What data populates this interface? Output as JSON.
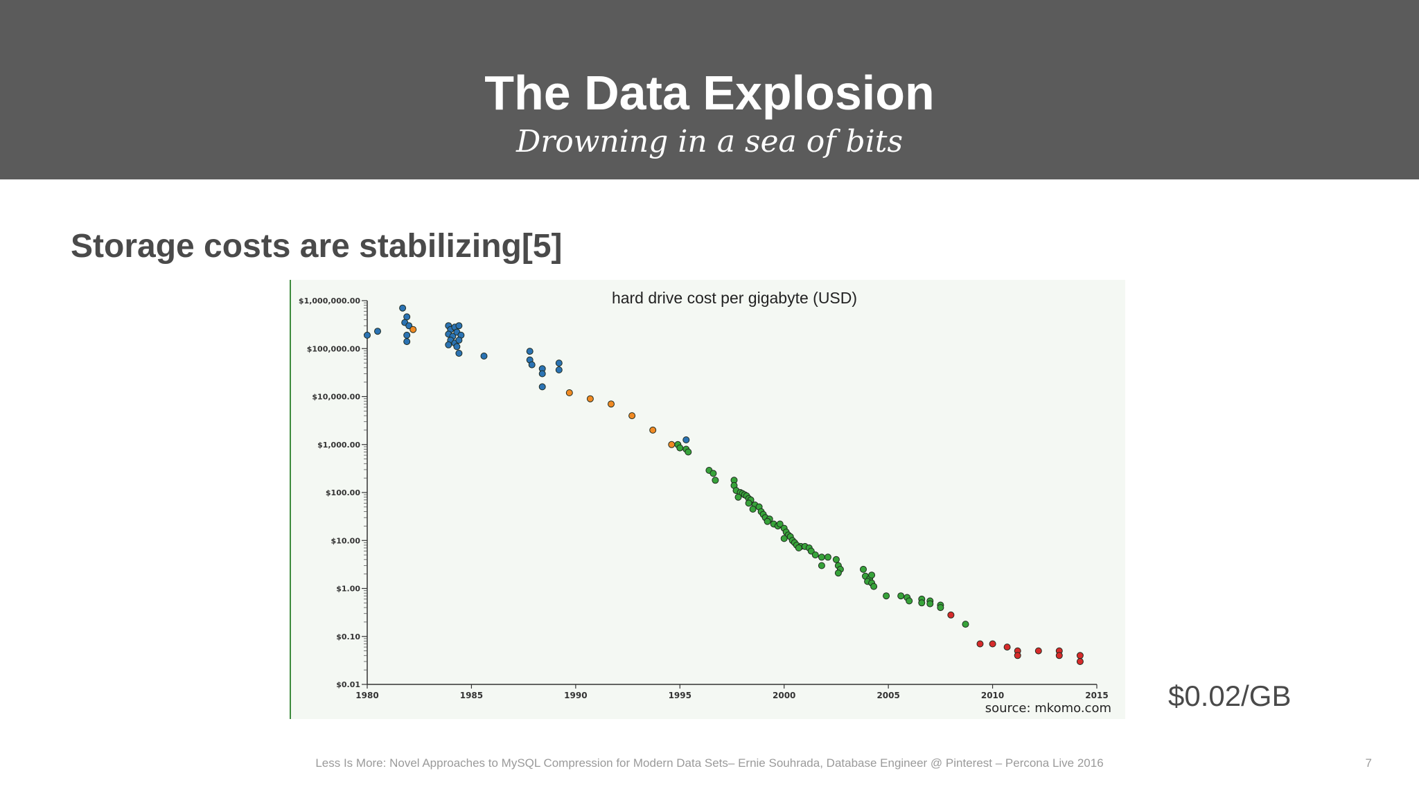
{
  "slide": {
    "title": "The Data Explosion",
    "subtitle": "Drowning in a sea of bits",
    "heading": "Storage costs are stabilizing[5]",
    "price_label": "$0.02/GB",
    "footer": "Less Is More: Novel Approaches to MySQL Compression for Modern Data Sets– Ernie Souhrada, Database Engineer @ Pinterest – Percona Live 2016",
    "page_number": "7"
  },
  "colors": {
    "header_bg": "#5b5b5b",
    "chart_bg": "#f4f8f3",
    "blue": "#2b73b3",
    "orange": "#f08a24",
    "green": "#37a33a",
    "red": "#d62b2b"
  },
  "chart_data": {
    "type": "scatter",
    "title": "hard drive cost per gigabyte (USD)",
    "source": "source: mkomo.com",
    "xlabel": "",
    "ylabel": "",
    "xlim": [
      1980,
      2015
    ],
    "ylim": [
      0.01,
      1000000
    ],
    "yscale": "log",
    "grid": false,
    "x_ticks": [
      "1980",
      "1985",
      "1990",
      "1995",
      "2000",
      "2005",
      "2010",
      "2015"
    ],
    "y_ticks": [
      "$1,000,000.00",
      "$100,000.00",
      "$10,000.00",
      "$1,000.00",
      "$100.00",
      "$10.00",
      "$1.00",
      "$0.10",
      "$0.01"
    ],
    "series": [
      {
        "color": "#2b73b3",
        "points": [
          [
            1980.0,
            190000
          ],
          [
            1980.5,
            230000
          ],
          [
            1981.7,
            700000
          ],
          [
            1981.9,
            460000
          ],
          [
            1981.8,
            350000
          ],
          [
            1982.0,
            300000
          ],
          [
            1981.9,
            190000
          ],
          [
            1981.9,
            140000
          ],
          [
            1983.9,
            300000
          ],
          [
            1984.0,
            250000
          ],
          [
            1984.2,
            280000
          ],
          [
            1984.4,
            300000
          ],
          [
            1983.9,
            200000
          ],
          [
            1984.1,
            180000
          ],
          [
            1984.3,
            220000
          ],
          [
            1984.5,
            190000
          ],
          [
            1984.0,
            150000
          ],
          [
            1984.2,
            130000
          ],
          [
            1983.9,
            120000
          ],
          [
            1984.4,
            150000
          ],
          [
            1984.3,
            110000
          ],
          [
            1984.4,
            80000
          ],
          [
            1985.6,
            70000
          ],
          [
            1987.8,
            88000
          ],
          [
            1987.8,
            58000
          ],
          [
            1987.9,
            46000
          ],
          [
            1988.4,
            38000
          ],
          [
            1988.4,
            30000
          ],
          [
            1988.4,
            16000
          ],
          [
            1989.2,
            50000
          ],
          [
            1989.2,
            36000
          ],
          [
            1995.3,
            1250
          ]
        ]
      },
      {
        "color": "#f08a24",
        "points": [
          [
            1982.2,
            250000
          ],
          [
            1989.7,
            12000
          ],
          [
            1990.7,
            9000
          ],
          [
            1991.7,
            7000
          ],
          [
            1992.7,
            4000
          ],
          [
            1993.7,
            2000
          ],
          [
            1994.6,
            1000
          ]
        ]
      },
      {
        "color": "#37a33a",
        "points": [
          [
            1994.9,
            1000
          ],
          [
            1995.0,
            850
          ],
          [
            1995.3,
            800
          ],
          [
            1995.4,
            700
          ],
          [
            1996.4,
            290
          ],
          [
            1996.6,
            250
          ],
          [
            1996.7,
            180
          ],
          [
            1997.6,
            180
          ],
          [
            1997.6,
            140
          ],
          [
            1997.7,
            110
          ],
          [
            1997.9,
            100
          ],
          [
            1998.0,
            95
          ],
          [
            1997.8,
            80
          ],
          [
            1998.1,
            90
          ],
          [
            1998.2,
            85
          ],
          [
            1998.3,
            75
          ],
          [
            1998.4,
            70
          ],
          [
            1998.3,
            60
          ],
          [
            1998.6,
            55
          ],
          [
            1998.5,
            45
          ],
          [
            1998.8,
            50
          ],
          [
            1998.9,
            40
          ],
          [
            1999.0,
            35
          ],
          [
            1999.1,
            30
          ],
          [
            1999.3,
            28
          ],
          [
            1999.2,
            25
          ],
          [
            1999.5,
            22
          ],
          [
            1999.7,
            20
          ],
          [
            1999.8,
            22
          ],
          [
            2000.0,
            18
          ],
          [
            2000.1,
            15
          ],
          [
            2000.2,
            13
          ],
          [
            2000.3,
            12
          ],
          [
            2000.0,
            11
          ],
          [
            2000.4,
            10
          ],
          [
            2000.5,
            9
          ],
          [
            2000.6,
            8
          ],
          [
            2000.8,
            7.5
          ],
          [
            2000.7,
            7
          ],
          [
            2001.0,
            7.5
          ],
          [
            2001.2,
            7
          ],
          [
            2001.3,
            6
          ],
          [
            2001.5,
            5
          ],
          [
            2001.8,
            4.5
          ],
          [
            2002.1,
            4.5
          ],
          [
            2002.5,
            4
          ],
          [
            2001.8,
            3
          ],
          [
            2002.6,
            3
          ],
          [
            2002.7,
            2.5
          ],
          [
            2002.6,
            2.1
          ],
          [
            2003.8,
            2.5
          ],
          [
            2003.9,
            1.8
          ],
          [
            2004.1,
            1.6
          ],
          [
            2004.2,
            1.9
          ],
          [
            2004.0,
            1.4
          ],
          [
            2004.2,
            1.3
          ],
          [
            2004.3,
            1.1
          ],
          [
            2004.9,
            0.7
          ],
          [
            2005.6,
            0.7
          ],
          [
            2005.9,
            0.65
          ],
          [
            2006.0,
            0.55
          ],
          [
            2006.6,
            0.6
          ],
          [
            2006.6,
            0.5
          ],
          [
            2007.0,
            0.55
          ],
          [
            2007.0,
            0.48
          ],
          [
            2007.5,
            0.45
          ],
          [
            2007.5,
            0.4
          ],
          [
            2008.7,
            0.18
          ]
        ]
      },
      {
        "color": "#d62b2b",
        "points": [
          [
            2008.0,
            0.28
          ],
          [
            2009.4,
            0.07
          ],
          [
            2010.0,
            0.07
          ],
          [
            2010.7,
            0.06
          ],
          [
            2011.2,
            0.05
          ],
          [
            2011.2,
            0.04
          ],
          [
            2012.2,
            0.05
          ],
          [
            2013.2,
            0.05
          ],
          [
            2013.2,
            0.04
          ],
          [
            2014.2,
            0.04
          ],
          [
            2014.2,
            0.03
          ]
        ]
      }
    ]
  }
}
